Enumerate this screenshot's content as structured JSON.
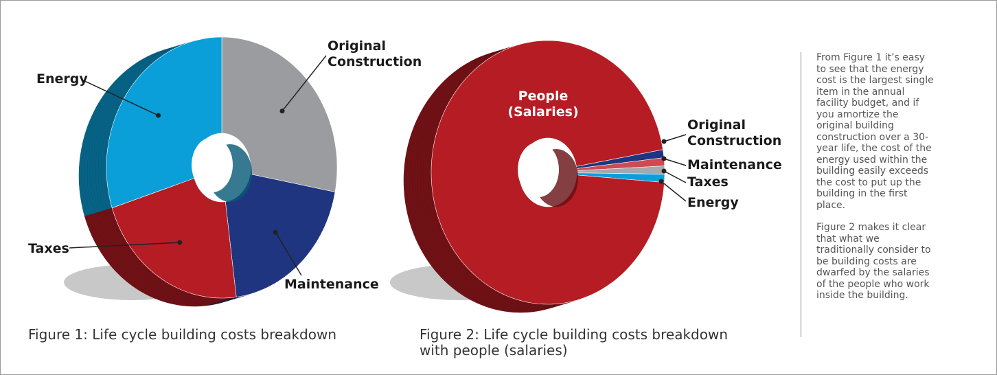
{
  "chart_data": [
    {
      "type": "pie",
      "title": "Figure 1: Life cycle building costs breakdown",
      "categories": [
        "Original Construction",
        "Maintenance",
        "Taxes",
        "Energy"
      ],
      "values": [
        28,
        20,
        22,
        30
      ],
      "colors": [
        "#9a9c9f",
        "#1f3580",
        "#b51c23",
        "#0a9fd8"
      ]
    },
    {
      "type": "pie",
      "title": "Figure 2: Life cycle building costs breakdown with people (salaries)",
      "categories": [
        "Original Construction",
        "Maintenance",
        "Taxes",
        "Energy",
        "People (Salaries)"
      ],
      "values": [
        1,
        1,
        1,
        1,
        96
      ],
      "colors": [
        "#1f3580",
        "#d04a52",
        "#a6a8ab",
        "#0a9fd8",
        "#b51c23"
      ]
    }
  ],
  "text": {
    "paragraphs": [
      "From Figure 1 it’s easy to see that the energy cost is the largest single item in the annual facility budget, and if you amortize the original building construction over a 30-year life, the cost of the energy used within the building easily exceeds the cost to put up the building in the first place.",
      "Figure 2 makes it clear that what we traditionally consider to be building costs are dwarfed by the salaries of the people who work inside the building."
    ]
  }
}
